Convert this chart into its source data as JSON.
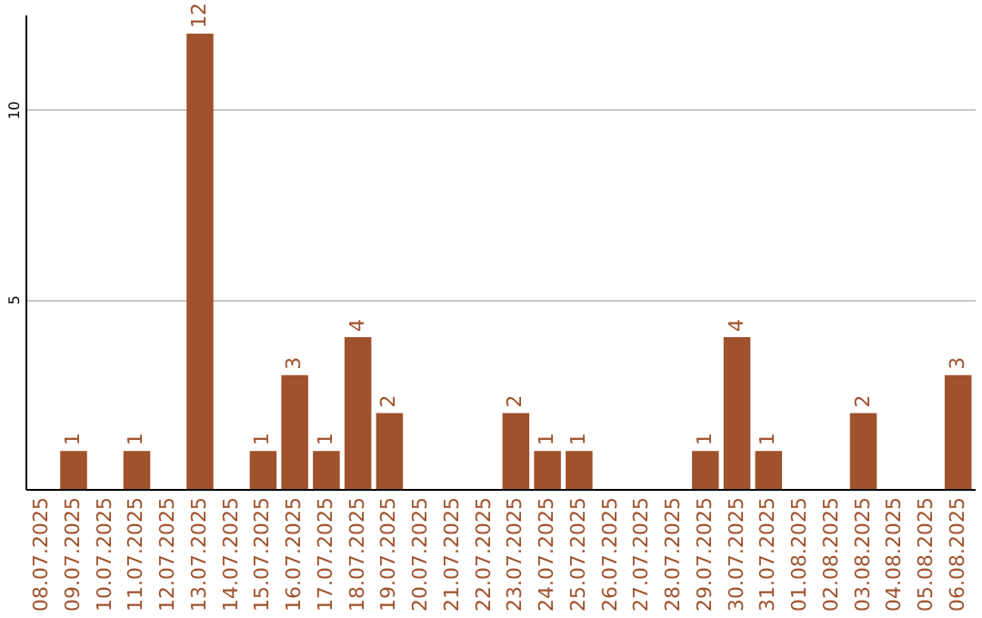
{
  "chart_data": {
    "type": "bar",
    "categories": [
      "08.07.2025",
      "09.07.2025",
      "10.07.2025",
      "11.07.2025",
      "12.07.2025",
      "13.07.2025",
      "14.07.2025",
      "15.07.2025",
      "16.07.2025",
      "17.07.2025",
      "18.07.2025",
      "19.07.2025",
      "20.07.2025",
      "21.07.2025",
      "22.07.2025",
      "23.07.2025",
      "24.07.2025",
      "25.07.2025",
      "26.07.2025",
      "27.07.2025",
      "28.07.2025",
      "29.07.2025",
      "30.07.2025",
      "31.07.2025",
      "01.08.2025",
      "02.08.2025",
      "03.08.2025",
      "04.08.2025",
      "05.08.2025",
      "06.08.2025"
    ],
    "values": [
      0,
      1,
      0,
      1,
      0,
      12,
      0,
      1,
      3,
      1,
      4,
      2,
      0,
      0,
      0,
      2,
      1,
      1,
      0,
      0,
      0,
      1,
      4,
      1,
      0,
      0,
      2,
      0,
      0,
      3
    ],
    "value_labels": [
      null,
      "1",
      null,
      "1",
      null,
      "12",
      null,
      "1",
      "3",
      "1",
      "4",
      "2",
      null,
      null,
      null,
      "2",
      "1",
      "1",
      null,
      null,
      null,
      "1",
      "4",
      "1",
      null,
      null,
      "2",
      null,
      null,
      "3"
    ],
    "color": "#a0522d",
    "ylim": [
      0,
      12.5
    ],
    "yticks": [
      5,
      10
    ],
    "grid": "y"
  }
}
